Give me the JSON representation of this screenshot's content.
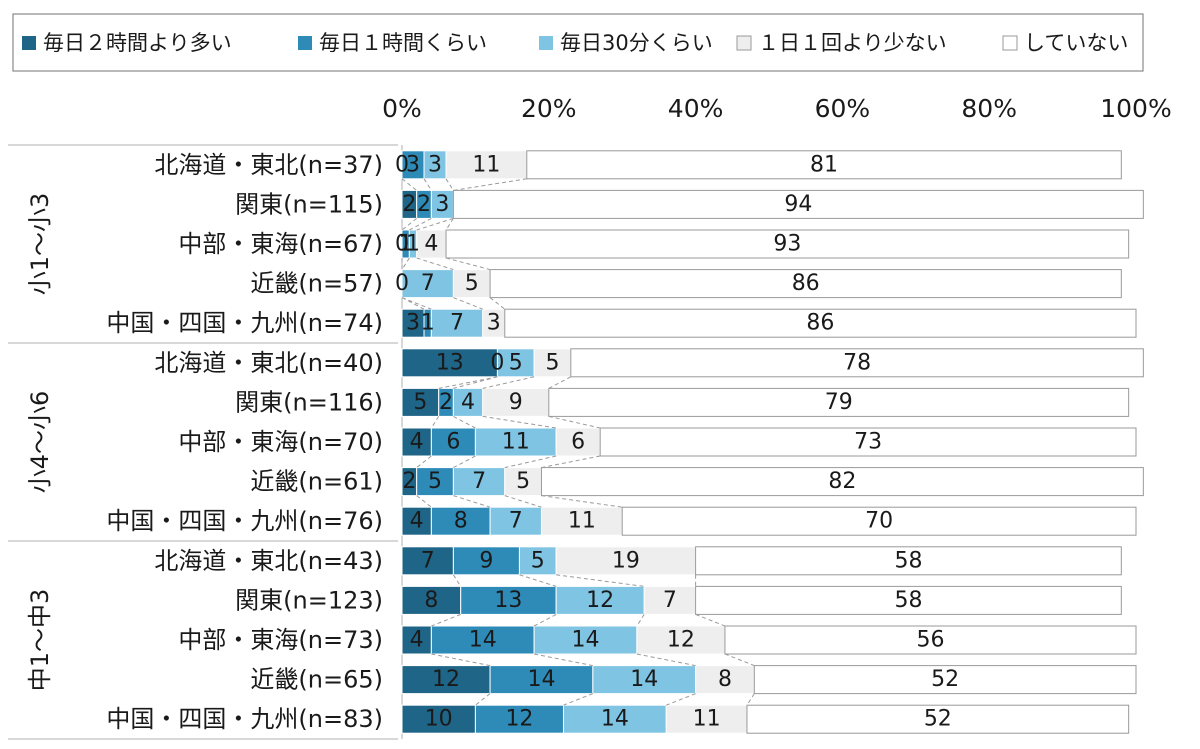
{
  "chart_data": {
    "type": "bar",
    "orientation": "horizontal-stacked-100",
    "series": [
      {
        "name": "毎日２時間より多い",
        "color": "#1f6587",
        "values": [
          0,
          2,
          0,
          0,
          3,
          13,
          5,
          4,
          2,
          4,
          7,
          8,
          4,
          12,
          10
        ]
      },
      {
        "name": "毎日１時間くらい",
        "color": "#2e8bb8",
        "values": [
          3,
          2,
          1,
          0,
          1,
          0,
          2,
          6,
          5,
          8,
          9,
          13,
          14,
          14,
          12
        ]
      },
      {
        "name": "毎日30分くらい",
        "color": "#7fc4e3",
        "values": [
          3,
          3,
          1,
          7,
          7,
          5,
          4,
          11,
          7,
          7,
          5,
          12,
          14,
          14,
          14
        ]
      },
      {
        "name": "１日１回より少ない",
        "color": "#eeeeee",
        "values": [
          11,
          0,
          4,
          5,
          3,
          5,
          9,
          6,
          5,
          11,
          19,
          7,
          12,
          8,
          11
        ]
      },
      {
        "name": "していない",
        "color": "#ffffff",
        "values": [
          81,
          94,
          93,
          86,
          86,
          78,
          79,
          73,
          82,
          70,
          58,
          58,
          56,
          52,
          52
        ]
      }
    ],
    "shown_labels": [
      [
        "0",
        "3",
        "3",
        "11",
        "81"
      ],
      [
        "2",
        "2",
        "3",
        "",
        "94"
      ],
      [
        "0",
        "1",
        "1",
        "4",
        "93"
      ],
      [
        "0",
        "",
        "7",
        "5",
        "86"
      ],
      [
        "3",
        "1",
        "7",
        "3",
        "86"
      ],
      [
        "13",
        "0",
        "5",
        "5",
        "78"
      ],
      [
        "5",
        "2",
        "4",
        "9",
        "79"
      ],
      [
        "4",
        "6",
        "11",
        "6",
        "73"
      ],
      [
        "2",
        "5",
        "7",
        "5",
        "82"
      ],
      [
        "4",
        "8",
        "7",
        "11",
        "70"
      ],
      [
        "7",
        "9",
        "5",
        "19",
        "58"
      ],
      [
        "8",
        "13",
        "12",
        "7",
        "58"
      ],
      [
        "4",
        "14",
        "14",
        "12",
        "56"
      ],
      [
        "12",
        "14",
        "14",
        "8",
        "52"
      ],
      [
        "10",
        "12",
        "14",
        "11",
        "52"
      ]
    ],
    "groups": [
      {
        "name": "小1～小3",
        "categories": [
          "北海道・東北(n=37)",
          "関東(n=115)",
          "中部・東海(n=67)",
          "近畿(n=57)",
          "中国・四国・九州(n=74)"
        ]
      },
      {
        "name": "小4～小6",
        "categories": [
          "北海道・東北(n=40)",
          "関東(n=116)",
          "中部・東海(n=70)",
          "近畿(n=61)",
          "中国・四国・九州(n=76)"
        ]
      },
      {
        "name": "中1～中3",
        "categories": [
          "北海道・東北(n=43)",
          "関東(n=123)",
          "中部・東海(n=73)",
          "近畿(n=65)",
          "中国・四国・九州(n=83)"
        ]
      }
    ],
    "x_ticks": [
      "0%",
      "20%",
      "40%",
      "60%",
      "80%",
      "100%"
    ],
    "xlim": [
      0,
      100
    ],
    "legend_position": "top",
    "grid": false
  }
}
